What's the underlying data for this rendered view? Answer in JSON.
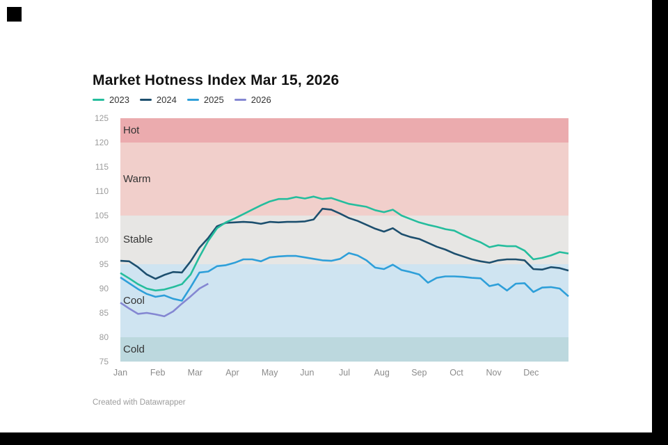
{
  "header": {
    "title": "Market Hotness Index Mar 15, 2026"
  },
  "footer": {
    "credit": "Created with Datawrapper"
  },
  "chart_data": {
    "type": "line",
    "title": "Market Hotness Index Mar 15, 2026",
    "xlabel": "",
    "ylabel": "",
    "grid": false,
    "legend_position": "top",
    "x_axis": {
      "tick_labels": [
        "Jan",
        "Feb",
        "Mar",
        "Apr",
        "May",
        "Jun",
        "Jul",
        "Aug",
        "Sep",
        "Oct",
        "Nov",
        "Dec"
      ],
      "points_per_year": 52,
      "cadence": "weekly"
    },
    "y_axis": {
      "min": 75,
      "max": 125,
      "ticks": [
        125,
        120,
        115,
        110,
        105,
        100,
        95,
        90,
        85,
        80,
        75
      ]
    },
    "bands": [
      {
        "label": "Hot",
        "from": 120,
        "to": 125,
        "color": "#ebabae"
      },
      {
        "label": "Warm",
        "from": 105,
        "to": 120,
        "color": "#f1cfcb"
      },
      {
        "label": "Stable",
        "from": 95,
        "to": 105,
        "color": "#e7e6e4"
      },
      {
        "label": "Cool",
        "from": 80,
        "to": 95,
        "color": "#cfe4f1"
      },
      {
        "label": "Cold",
        "from": 75,
        "to": 80,
        "color": "#bcd8de"
      }
    ],
    "series": [
      {
        "name": "2023",
        "color": "#25bd9d",
        "values": [
          93.2,
          92.1,
          90.9,
          90.0,
          89.6,
          89.8,
          90.3,
          90.9,
          92.9,
          96.5,
          99.8,
          102.4,
          103.6,
          104.4,
          105.3,
          106.2,
          107.1,
          107.9,
          108.4,
          108.4,
          108.8,
          108.5,
          108.9,
          108.4,
          108.6,
          108.0,
          107.4,
          107.1,
          106.8,
          106.1,
          105.7,
          106.2,
          105.0,
          104.3,
          103.6,
          103.1,
          102.7,
          102.2,
          101.9,
          101.0,
          100.2,
          99.5,
          98.5,
          98.9,
          98.7,
          98.7,
          97.8,
          96.0,
          96.3,
          96.8,
          97.5,
          97.2
        ]
      },
      {
        "name": "2024",
        "color": "#1d4f6e",
        "values": [
          95.7,
          95.6,
          94.4,
          92.9,
          92.0,
          92.8,
          93.4,
          93.3,
          95.6,
          98.4,
          100.4,
          102.8,
          103.5,
          103.6,
          103.7,
          103.6,
          103.3,
          103.7,
          103.6,
          103.7,
          103.7,
          103.8,
          104.2,
          106.4,
          106.2,
          105.4,
          104.5,
          103.9,
          103.1,
          102.3,
          101.7,
          102.4,
          101.2,
          100.6,
          100.2,
          99.4,
          98.6,
          98.0,
          97.2,
          96.6,
          96.0,
          95.6,
          95.3,
          95.8,
          96.0,
          96.0,
          95.8,
          94.0,
          93.9,
          94.4,
          94.2,
          93.7
        ]
      },
      {
        "name": "2025",
        "color": "#2e9fd9",
        "values": [
          92.3,
          91.1,
          89.9,
          88.9,
          88.3,
          88.6,
          87.9,
          87.5,
          90.3,
          93.3,
          93.5,
          94.6,
          94.8,
          95.3,
          96.0,
          96.0,
          95.6,
          96.4,
          96.6,
          96.7,
          96.7,
          96.4,
          96.1,
          95.8,
          95.7,
          96.1,
          97.3,
          96.8,
          95.8,
          94.3,
          94.0,
          94.9,
          93.8,
          93.4,
          92.9,
          91.2,
          92.2,
          92.5,
          92.5,
          92.4,
          92.2,
          92.1,
          90.5,
          90.9,
          89.6,
          91.0,
          91.1,
          89.3,
          90.2,
          90.3,
          90.0,
          88.4
        ]
      },
      {
        "name": "2026",
        "color": "#8487d2",
        "values": [
          87.1,
          85.9,
          84.8,
          85.0,
          84.7,
          84.3,
          85.3,
          86.9,
          88.4,
          90.0,
          91.0
        ]
      }
    ]
  }
}
